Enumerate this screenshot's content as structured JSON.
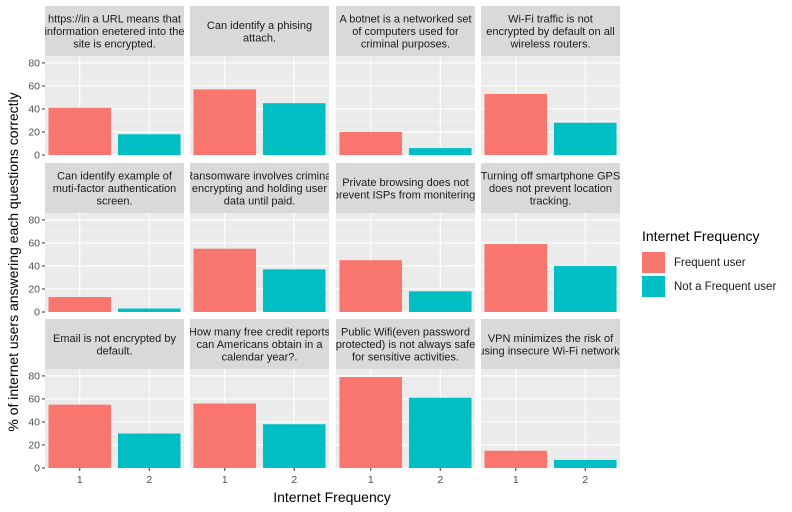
{
  "chart_data": {
    "type": "bar",
    "facet_layout": {
      "rows": 3,
      "cols": 4
    },
    "categories": [
      "1",
      "2"
    ],
    "xlabel": "Internet Frequency",
    "ylabel": "% of internet users answering each questions correctly",
    "ylim": [
      0,
      86
    ],
    "yticks": [
      0,
      20,
      40,
      60,
      80
    ],
    "grid": true,
    "legend": {
      "title": "Internet Frequency",
      "position": "right",
      "entries": [
        {
          "label": "Frequent user",
          "color": "#F8766D"
        },
        {
          "label": "Not a Frequent user",
          "color": "#00BFC4"
        }
      ]
    },
    "panels": [
      {
        "title": [
          "https://in a URL means that",
          "information enetered into the",
          "site is encrypted."
        ],
        "values": [
          41,
          18
        ]
      },
      {
        "title": [
          "Can identify a phising",
          "attach."
        ],
        "values": [
          57,
          45
        ]
      },
      {
        "title": [
          "A botnet is a networked set",
          "of computers used for",
          "criminal purposes."
        ],
        "values": [
          20,
          6
        ]
      },
      {
        "title": [
          "Wi-Fi traffic is not",
          "encrypted by default on all",
          "wireless routers."
        ],
        "values": [
          53,
          28
        ]
      },
      {
        "title": [
          "Can identify example of",
          "muti-factor authentication",
          "screen."
        ],
        "values": [
          13,
          3
        ]
      },
      {
        "title": [
          "Ransomware involves criminal",
          "encrypting and holding user",
          "data until paid."
        ],
        "values": [
          55,
          37
        ]
      },
      {
        "title": [
          "Private browsing does not",
          "prevent ISPs from monitering."
        ],
        "values": [
          45,
          18
        ]
      },
      {
        "title": [
          "Turning off smartphone GPS",
          "does not prevent location",
          "tracking."
        ],
        "values": [
          59,
          40
        ]
      },
      {
        "title": [
          "Email is not encrypted by",
          "default."
        ],
        "values": [
          55,
          30
        ]
      },
      {
        "title": [
          "How many free credit reports",
          "can Americans obtain in a",
          "calendar year?."
        ],
        "values": [
          56,
          38
        ]
      },
      {
        "title": [
          "Public Wifi(even password",
          "protected) is not always safe",
          "for sensitive activities."
        ],
        "values": [
          79,
          61
        ]
      },
      {
        "title": [
          "VPN minimizes the risk of",
          "using insecure Wi-Fi network."
        ],
        "values": [
          15,
          7
        ]
      }
    ]
  }
}
